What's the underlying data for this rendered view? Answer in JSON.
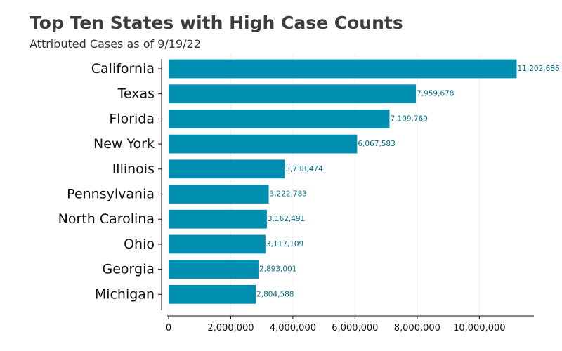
{
  "chart_data": {
    "type": "bar",
    "orientation": "horizontal",
    "title": "Top Ten States with High Case Counts",
    "subtitle": "Attributed Cases as of 9/19/22",
    "xlabel": "",
    "ylabel": "",
    "categories": [
      "California",
      "Texas",
      "Florida",
      "New York",
      "Illinois",
      "Pennsylvania",
      "North Carolina",
      "Ohio",
      "Georgia",
      "Michigan"
    ],
    "values": [
      11202686,
      7959678,
      7109769,
      6067583,
      3738474,
      3222783,
      3162491,
      3117109,
      2893001,
      2804588
    ],
    "value_labels": [
      "11,202,686",
      "7,959,678",
      "7,109,769",
      "6,067,583",
      "3,738,474",
      "3,222,783",
      "3,162,491",
      "3,117,109",
      "2,893,001",
      "2,804,588"
    ],
    "x_ticks": [
      0,
      2000000,
      4000000,
      6000000,
      8000000,
      10000000
    ],
    "x_tick_labels": [
      "0",
      "2,000,000",
      "4,000,000",
      "6,000,000",
      "8,000,000",
      "10,000,000"
    ],
    "xlim": [
      0,
      11800000
    ],
    "grid": "vertical",
    "legend": "none",
    "bar_color": "#008fb0",
    "data_label_color": "#006d85"
  }
}
